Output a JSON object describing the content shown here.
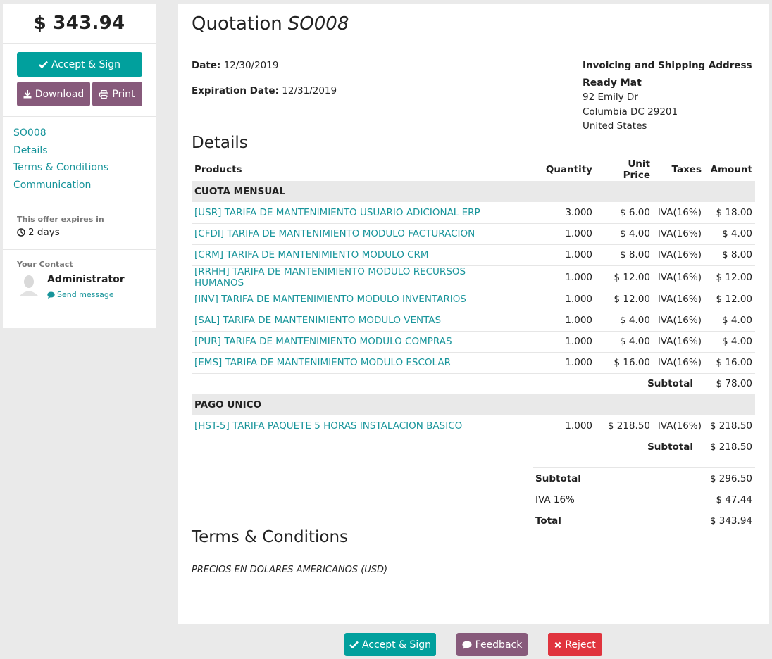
{
  "sidebar": {
    "total": "$ 343.94",
    "accept_label": "Accept & Sign",
    "download_label": "Download",
    "print_label": "Print",
    "nav": [
      "SO008",
      "Details",
      "Terms & Conditions",
      "Communication"
    ],
    "expires_label": "This offer expires in",
    "expires_value": "2 days",
    "contact_label": "Your Contact",
    "contact_name": "Administrator",
    "send_message_label": "Send message"
  },
  "quote": {
    "title_prefix": "Quotation",
    "number": "SO008",
    "date_label": "Date:",
    "date_value": "12/30/2019",
    "expiration_label": "Expiration Date:",
    "expiration_value": "12/31/2019",
    "address_header": "Invoicing and Shipping Address",
    "company": "Ready Mat",
    "street": "92 Emily Dr",
    "city": "Columbia DC 29201",
    "country": "United States"
  },
  "details": {
    "title": "Details",
    "headers": {
      "product": "Products",
      "quantity": "Quantity",
      "unit_price": "Unit Price",
      "taxes": "Taxes",
      "amount": "Amount"
    },
    "sections": [
      {
        "name": "CUOTA MENSUAL",
        "lines": [
          {
            "product": "[USR] TARIFA DE MANTENIMIENTO USUARIO ADICIONAL ERP",
            "qty": "3.000",
            "price": "$ 6.00",
            "tax": "IVA(16%)",
            "amount": "$ 18.00"
          },
          {
            "product": "[CFDI] TARIFA DE MANTENIMIENTO MODULO FACTURACION",
            "qty": "1.000",
            "price": "$ 4.00",
            "tax": "IVA(16%)",
            "amount": "$ 4.00"
          },
          {
            "product": "[CRM] TARIFA DE MANTENIMIENTO MODULO CRM",
            "qty": "1.000",
            "price": "$ 8.00",
            "tax": "IVA(16%)",
            "amount": "$ 8.00"
          },
          {
            "product": "[RRHH] TARIFA DE MANTENIMIENTO MODULO RECURSOS HUMANOS",
            "qty": "1.000",
            "price": "$ 12.00",
            "tax": "IVA(16%)",
            "amount": "$ 12.00"
          },
          {
            "product": "[INV] TARIFA DE MANTENIMIENTO MODULO INVENTARIOS",
            "qty": "1.000",
            "price": "$ 12.00",
            "tax": "IVA(16%)",
            "amount": "$ 12.00"
          },
          {
            "product": "[SAL] TARIFA DE MANTENIMIENTO MODULO VENTAS",
            "qty": "1.000",
            "price": "$ 4.00",
            "tax": "IVA(16%)",
            "amount": "$ 4.00"
          },
          {
            "product": "[PUR] TARIFA DE MANTENIMIENTO MODULO COMPRAS",
            "qty": "1.000",
            "price": "$ 4.00",
            "tax": "IVA(16%)",
            "amount": "$ 4.00"
          },
          {
            "product": "[EMS] TARIFA DE MANTENIMIENTO MODULO ESCOLAR",
            "qty": "1.000",
            "price": "$ 16.00",
            "tax": "IVA(16%)",
            "amount": "$ 16.00"
          }
        ],
        "subtotal_label": "Subtotal",
        "subtotal": "$ 78.00"
      },
      {
        "name": "PAGO UNICO",
        "lines": [
          {
            "product": "[HST-5] TARIFA PAQUETE 5 HORAS INSTALACION BASICO",
            "qty": "1.000",
            "price": "$ 218.50",
            "tax": "IVA(16%)",
            "amount": "$ 218.50"
          }
        ],
        "subtotal_label": "Subtotal",
        "subtotal": "$ 218.50"
      }
    ]
  },
  "totals": {
    "subtotal_label": "Subtotal",
    "subtotal": "$ 296.50",
    "tax_label": "IVA 16%",
    "tax": "$ 47.44",
    "total_label": "Total",
    "total": "$ 343.94"
  },
  "terms": {
    "title": "Terms & Conditions",
    "text": "PRECIOS EN DOLARES AMERICANOS (USD)"
  },
  "bottom": {
    "accept_label": "Accept & Sign",
    "feedback_label": "Feedback",
    "reject_label": "Reject"
  },
  "colors": {
    "accent": "#01a09d",
    "secondary": "#875a7b",
    "danger": "#e0343e",
    "link": "#17949a"
  },
  "icons": [
    "check-icon",
    "download-icon",
    "print-icon",
    "clock-icon",
    "comment-icon",
    "times-icon",
    "avatar"
  ]
}
